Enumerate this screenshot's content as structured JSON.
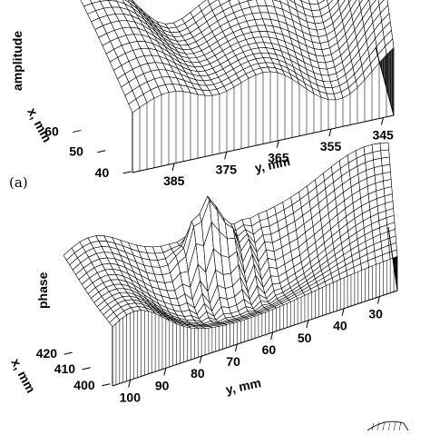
{
  "chart_data": [
    {
      "type": "surface",
      "panel_label": "(a)",
      "zlabel": "amplitude",
      "xlabel": "x, mm",
      "ylabel": "y, mm",
      "x_ticks": [
        "40",
        "50",
        "60"
      ],
      "y_ticks": [
        "385",
        "375",
        "365",
        "355",
        "345"
      ],
      "x_range": [
        40,
        62
      ],
      "y_range": [
        345,
        390
      ]
    },
    {
      "type": "surface",
      "panel_label": "",
      "zlabel": "phase",
      "xlabel": "x, mm",
      "ylabel": "y, mm",
      "x_ticks": [
        "400",
        "410",
        "420"
      ],
      "y_ticks": [
        "100",
        "90",
        "80",
        "70",
        "60",
        "50",
        "40",
        "30"
      ],
      "x_range": [
        400,
        422
      ],
      "y_range": [
        25,
        100
      ]
    }
  ]
}
